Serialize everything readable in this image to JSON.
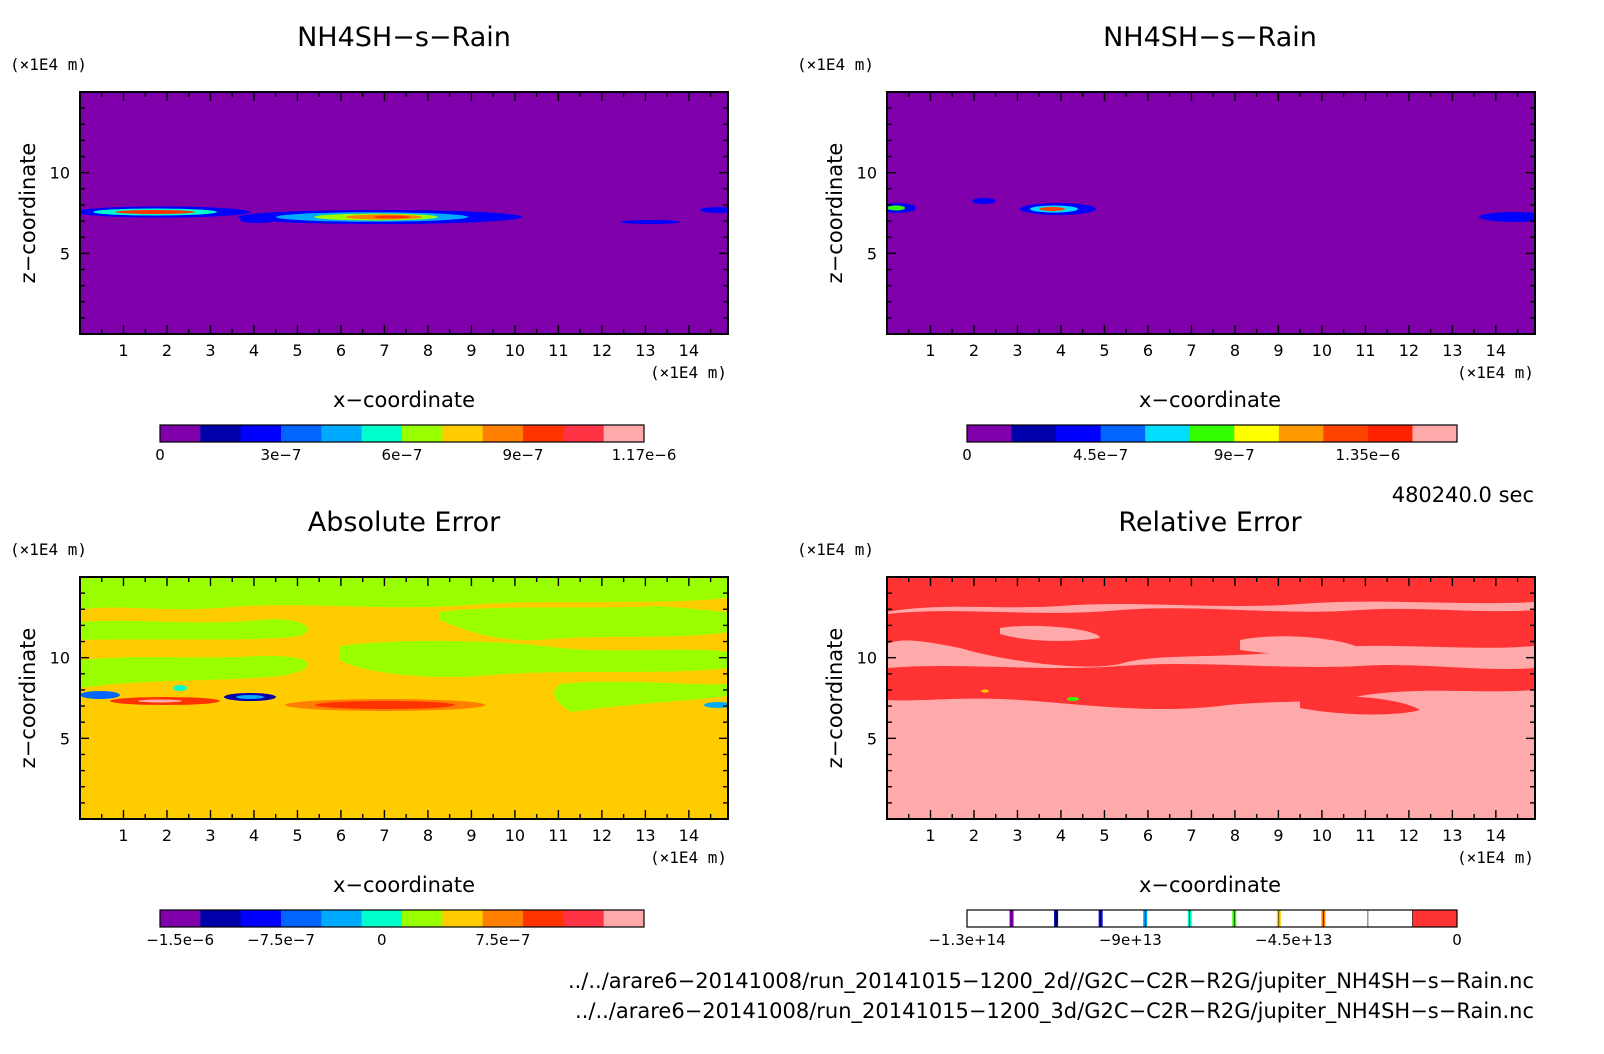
{
  "chart_data": [
    {
      "type": "heatmap",
      "title": "NH4SH−s−Rain",
      "xlabel": "x−coordinate",
      "ylabel": "z−coordinate",
      "x_unit": "(×1E4 m)",
      "z_unit": "(×1E4 m)",
      "xlim": [
        0,
        14.9
      ],
      "zlim": [
        0,
        15
      ],
      "x_ticks": [
        "1",
        "2",
        "3",
        "4",
        "5",
        "6",
        "7",
        "8",
        "9",
        "10",
        "11",
        "12",
        "13",
        "14"
      ],
      "z_ticks": [
        "5",
        "10"
      ],
      "background_color": "#7f00aa",
      "colorbar": {
        "colors": [
          "#7f00aa",
          "#0000aa",
          "#0000ff",
          "#0066ff",
          "#00aaff",
          "#00ffcc",
          "#99ff00",
          "#ffcc00",
          "#ff8000",
          "#ff3300",
          "#ff3344",
          "#ffaaaa"
        ],
        "tick_labels": [
          "0",
          "3e−7",
          "6e−7",
          "9e−7",
          "1.17e−6"
        ]
      }
    },
    {
      "type": "heatmap",
      "title": "NH4SH−s−Rain",
      "xlabel": "x−coordinate",
      "ylabel": "z−coordinate",
      "x_unit": "(×1E4 m)",
      "z_unit": "(×1E4 m)",
      "xlim": [
        0,
        14.9
      ],
      "zlim": [
        0,
        15
      ],
      "x_ticks": [
        "1",
        "2",
        "3",
        "4",
        "5",
        "6",
        "7",
        "8",
        "9",
        "10",
        "11",
        "12",
        "13",
        "14"
      ],
      "z_ticks": [
        "5",
        "10"
      ],
      "background_color": "#7f00aa",
      "colorbar": {
        "colors": [
          "#7f00aa",
          "#0000aa",
          "#0000ff",
          "#0066ff",
          "#00ddff",
          "#33ff00",
          "#ffff00",
          "#ff9900",
          "#ff4400",
          "#ff2200",
          "#ffaaaa"
        ],
        "tick_labels": [
          "0",
          "4.5e−7",
          "9e−7",
          "1.35e−6"
        ]
      }
    },
    {
      "type": "heatmap",
      "title": "Absolute Error",
      "xlabel": "x−coordinate",
      "ylabel": "z−coordinate",
      "x_unit": "(×1E4 m)",
      "z_unit": "(×1E4 m)",
      "xlim": [
        0,
        14.9
      ],
      "zlim": [
        0,
        15
      ],
      "x_ticks": [
        "1",
        "2",
        "3",
        "4",
        "5",
        "6",
        "7",
        "8",
        "9",
        "10",
        "11",
        "12",
        "13",
        "14"
      ],
      "z_ticks": [
        "5",
        "10"
      ],
      "background_color": "#ffcc00",
      "colorbar": {
        "colors": [
          "#7f00aa",
          "#0000aa",
          "#0000ff",
          "#0066ff",
          "#00aaff",
          "#00ffcc",
          "#99ff00",
          "#ffcc00",
          "#ff8000",
          "#ff3300",
          "#ff3344",
          "#ffaaaa"
        ],
        "tick_labels": [
          "−1.5e−6",
          "−7.5e−7",
          "0",
          "7.5e−7"
        ]
      }
    },
    {
      "type": "heatmap",
      "title": "Relative Error",
      "xlabel": "x−coordinate",
      "ylabel": "z−coordinate",
      "x_unit": "(×1E4 m)",
      "z_unit": "(×1E4 m)",
      "xlim": [
        0,
        14.9
      ],
      "zlim": [
        0,
        15
      ],
      "x_ticks": [
        "1",
        "2",
        "3",
        "4",
        "5",
        "6",
        "7",
        "8",
        "9",
        "10",
        "11",
        "12",
        "13",
        "14"
      ],
      "z_ticks": [
        "5",
        "10"
      ],
      "background_color": "#ffaaaa",
      "colorbar": {
        "colors": [
          "#ffffff",
          "#ffffff",
          "#ffffff",
          "#ffffff",
          "#ffffff",
          "#ffffff",
          "#ffffff",
          "#ffffff",
          "#ffffff",
          "#ffffff",
          "#ff3333"
        ],
        "marker_colors": [
          "#7f00aa",
          "#0000aa",
          "#0000ff",
          "#00aaff",
          "#00ffcc",
          "#33ff00",
          "#ffcc00",
          "#ff8000"
        ],
        "tick_labels": [
          "−1.3e+14",
          "−9e+13",
          "−4.5e+13",
          "0"
        ]
      }
    }
  ],
  "time_label": "480240.0 sec",
  "files": [
    "../../arare6−20141008/run_20141015−1200_2d//G2C−C2R−R2G/jupiter_NH4SH−s−Rain.nc",
    "../../arare6−20141008/run_20141015−1200_3d/G2C−C2R−R2G/jupiter_NH4SH−s−Rain.nc"
  ]
}
